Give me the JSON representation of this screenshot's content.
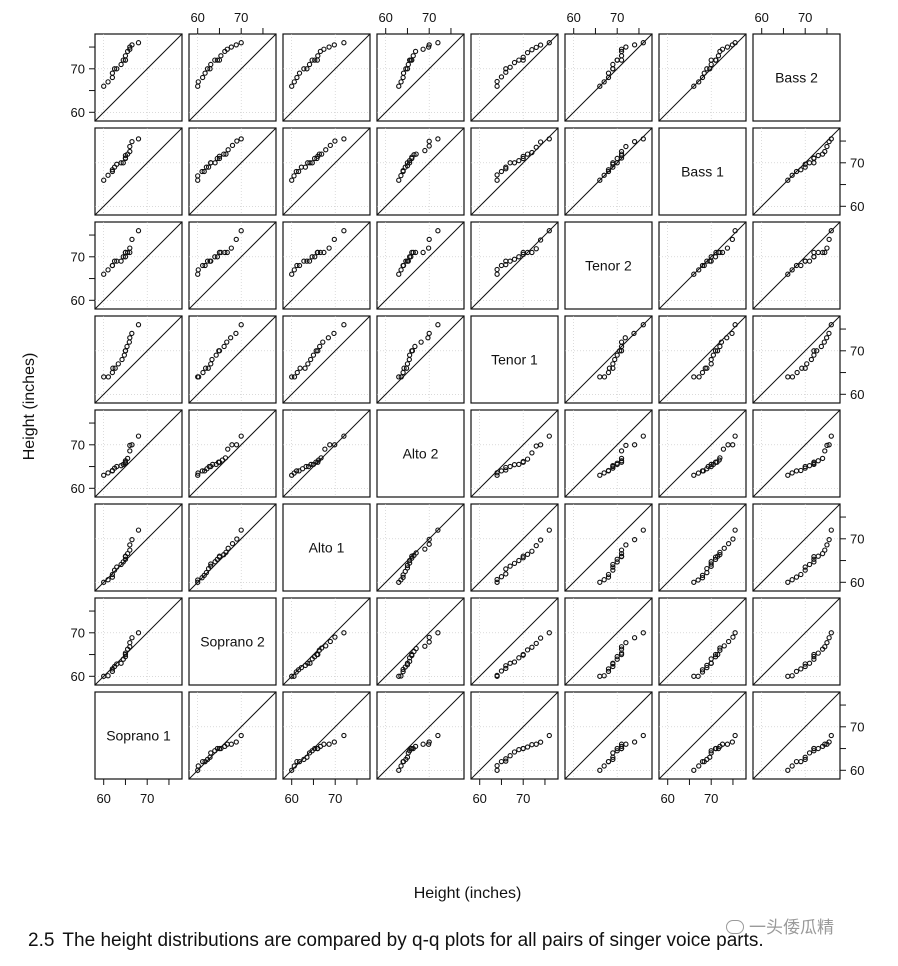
{
  "chart_data": {
    "type": "scatter",
    "subtype": "q-q scatterplot matrix",
    "xlabel": "Height (inches)",
    "ylabel": "Height (inches)",
    "axis_range": [
      58,
      78
    ],
    "ticks": [
      60,
      70
    ],
    "reference_line": "y = x",
    "variables": [
      "Soprano 1",
      "Soprano 2",
      "Alto 1",
      "Alto 2",
      "Tenor 1",
      "Tenor 2",
      "Bass 1",
      "Bass 2"
    ],
    "quantiles": {
      "Soprano 1": [
        60,
        61,
        62,
        62,
        62.5,
        63,
        64,
        64.5,
        65,
        65,
        65,
        65.5,
        66,
        66,
        66.5,
        68
      ],
      "Soprano 2": [
        60,
        60,
        61,
        61.5,
        62,
        62.5,
        63,
        63,
        64,
        64.5,
        65,
        65,
        66,
        66.5,
        67,
        68,
        69,
        70
      ],
      "Alto 1": [
        60,
        60.5,
        61,
        61.5,
        62,
        63,
        63.5,
        64,
        64.5,
        65,
        65.5,
        66,
        66,
        66.5,
        67,
        68,
        69,
        70,
        72
      ],
      "Alto 2": [
        63,
        63.5,
        64,
        64,
        64.5,
        65,
        65,
        65.5,
        65.5,
        66,
        66,
        66.5,
        67,
        69,
        70,
        70,
        72
      ],
      "Tenor 1": [
        64,
        64,
        65,
        66,
        66,
        67,
        68,
        69,
        70,
        70,
        71,
        72,
        73,
        74,
        76
      ],
      "Tenor 2": [
        66,
        67,
        68,
        68,
        69,
        69,
        69,
        70,
        70,
        71,
        71,
        71,
        71,
        72,
        74,
        76
      ],
      "Bass 1": [
        66,
        67,
        68,
        68,
        69,
        69,
        70,
        70,
        70,
        71,
        71,
        71.5,
        72,
        72,
        73,
        74,
        75,
        75.5
      ],
      "Bass 2": [
        66,
        67,
        68,
        69,
        70,
        70,
        71,
        72,
        72,
        72,
        73,
        74,
        74.5,
        75,
        75.5,
        76
      ]
    },
    "grid": true
  },
  "caption": {
    "number": "2.5",
    "text": "The height distributions are compared by q-q plots for all pairs of singer voice parts."
  },
  "watermark": "一头倭瓜精"
}
